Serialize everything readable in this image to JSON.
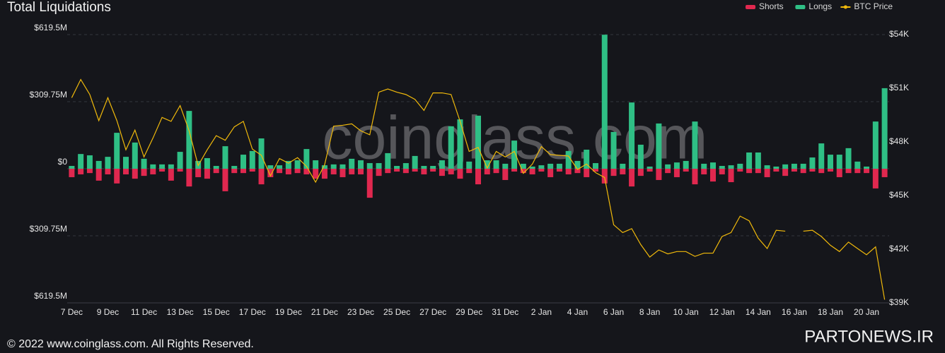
{
  "chart_data": {
    "type": "bar",
    "title": "Total Liquidations",
    "watermark": "coinglass.com",
    "footer": "© 2022 www.coinglass.com. All Rights Reserved.",
    "credit": "PARTONEWS.IR",
    "categories": [
      "7 Dec",
      null,
      null,
      null,
      "9 Dec",
      null,
      null,
      null,
      "11 Dec",
      null,
      null,
      null,
      "13 Dec",
      null,
      null,
      null,
      "15 Dec",
      null,
      null,
      null,
      "17 Dec",
      null,
      null,
      null,
      "19 Dec",
      null,
      null,
      null,
      "21 Dec",
      null,
      null,
      null,
      "23 Dec",
      null,
      null,
      null,
      "25 Dec",
      null,
      null,
      null,
      "27 Dec",
      null,
      null,
      null,
      "29 Dec",
      null,
      null,
      null,
      "31 Dec",
      null,
      null,
      null,
      "2 Jan",
      null,
      null,
      null,
      "4 Jan",
      null,
      null,
      null,
      "6 Jan",
      null,
      null,
      null,
      "8 Jan",
      null,
      null,
      null,
      "10 Jan",
      null,
      null,
      null,
      "12 Jan",
      null,
      null,
      null,
      "14 Jan",
      null,
      null,
      null,
      "16 Jan",
      null,
      null,
      null,
      "18 Jan",
      null,
      null,
      null,
      "20 Jan",
      null,
      null
    ],
    "series": [
      {
        "name": "Shorts",
        "color": "#e0284f",
        "values": [
          -39,
          -26,
          -20,
          -55,
          -26,
          -68,
          -26,
          -46,
          -33,
          -26,
          -13,
          -55,
          -13,
          -82,
          -39,
          -46,
          -20,
          -104,
          -20,
          -20,
          -13,
          -72,
          -39,
          -20,
          -26,
          -20,
          -26,
          -46,
          -46,
          -26,
          -39,
          -26,
          -26,
          -134,
          -33,
          -20,
          -13,
          -20,
          -13,
          -26,
          -13,
          -33,
          -26,
          -46,
          -20,
          -72,
          -26,
          -20,
          -52,
          -13,
          -20,
          -26,
          -13,
          -39,
          -13,
          -26,
          -20,
          -39,
          -13,
          -68,
          -33,
          -26,
          -82,
          -33,
          -13,
          -52,
          -20,
          -39,
          -13,
          -72,
          -26,
          -59,
          -26,
          -62,
          -13,
          -20,
          -20,
          -39,
          -13,
          -33,
          -13,
          -20,
          -13,
          -20,
          -13,
          -39,
          -20,
          -20,
          -20,
          -91,
          -39
        ]
      },
      {
        "name": "Longs",
        "color": "#2fbf85",
        "values": [
          13,
          68,
          62,
          36,
          55,
          166,
          55,
          121,
          46,
          20,
          20,
          20,
          78,
          267,
          36,
          49,
          13,
          104,
          13,
          65,
          82,
          140,
          16,
          16,
          36,
          39,
          91,
          39,
          16,
          20,
          20,
          46,
          39,
          26,
          26,
          72,
          13,
          26,
          59,
          13,
          13,
          39,
          196,
          228,
          33,
          245,
          39,
          39,
          23,
          130,
          23,
          10,
          16,
          23,
          23,
          82,
          36,
          88,
          26,
          619,
          170,
          23,
          306,
          111,
          10,
          209,
          20,
          29,
          36,
          218,
          23,
          29,
          13,
          16,
          23,
          75,
          75,
          16,
          10,
          20,
          23,
          23,
          52,
          117,
          65,
          65,
          95,
          33,
          10,
          218,
          372
        ]
      },
      {
        "name": "BTC Price",
        "color": "#f0b90b",
        "type": "line",
        "axis": "y2",
        "values": [
          50.47,
          51.49,
          50.65,
          49.19,
          50.47,
          49.19,
          47.56,
          48.66,
          47.16,
          48.22,
          49.37,
          49.15,
          50.03,
          48.62,
          46.68,
          47.56,
          48.35,
          48.09,
          48.84,
          49.15,
          47.6,
          47.25,
          46.1,
          47.07,
          46.81,
          47.12,
          46.63,
          45.75,
          46.72,
          48.88,
          48.93,
          49.01,
          48.62,
          48.4,
          50.78,
          50.96,
          50.78,
          50.65,
          50.38,
          49.76,
          50.74,
          50.74,
          50.65,
          49.15,
          47.47,
          47.69,
          46.54,
          47.47,
          47.16,
          47.47,
          46.24,
          46.76,
          47.74,
          47.29,
          47.25,
          47.21,
          46.46,
          46.76,
          46.28,
          46.01,
          43.37,
          42.93,
          43.15,
          42.26,
          41.56,
          41.96,
          41.74,
          41.87,
          41.87,
          41.6,
          41.78,
          41.78,
          42.71,
          42.93,
          43.85,
          43.59,
          42.62,
          42.04,
          43.06,
          43.01,
          null,
          43.01,
          43.06,
          42.71,
          42.22,
          41.87,
          42.4,
          42.04,
          41.69,
          42.13,
          39.18
        ]
      }
    ],
    "ylim": [
      -619.5,
      619.5
    ],
    "yticks": [
      {
        "value": -619.5,
        "label": "$619.5M"
      },
      {
        "value": -309.75,
        "label": "$309.75M"
      },
      {
        "value": 0,
        "label": "$0"
      },
      {
        "value": 309.75,
        "label": "$309.75M"
      },
      {
        "value": 619.5,
        "label": "$619.5M"
      }
    ],
    "y2lim": [
      39,
      54
    ],
    "y2ticks": [
      {
        "value": 39,
        "label": "$39K"
      },
      {
        "value": 42,
        "label": "$42K"
      },
      {
        "value": 45,
        "label": "$45K"
      },
      {
        "value": 48,
        "label": "$48K"
      },
      {
        "value": 51,
        "label": "$51K"
      },
      {
        "value": 54,
        "label": "$54K"
      }
    ],
    "grid": true,
    "legend": "top-right"
  }
}
